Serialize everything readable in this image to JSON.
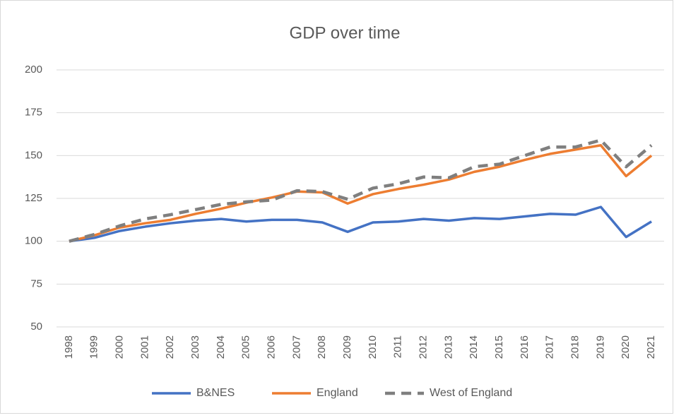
{
  "chart_data": {
    "type": "line",
    "title": "GDP over time",
    "categories": [
      "1998",
      "1999",
      "2000",
      "2001",
      "2002",
      "2003",
      "2004",
      "2005",
      "2006",
      "2007",
      "2008",
      "2009",
      "2010",
      "2011",
      "2012",
      "2013",
      "2014",
      "2015",
      "2016",
      "2017",
      "2018",
      "2019",
      "2020",
      "2021"
    ],
    "series": [
      {
        "name": "B&NES",
        "color": "#4472c4",
        "dash": false,
        "values": [
          100,
          102,
          106,
          108.5,
          110.5,
          112,
          113,
          111.5,
          112.5,
          112.5,
          111,
          105.5,
          111,
          111.5,
          113,
          112,
          113.5,
          113,
          114.5,
          116,
          115.5,
          120,
          102.5,
          111.5
        ]
      },
      {
        "name": "England",
        "color": "#ed7d31",
        "dash": false,
        "values": [
          100,
          103.5,
          108,
          110.5,
          112.5,
          116,
          119,
          122.5,
          125.5,
          129,
          128.5,
          122,
          127.5,
          130.5,
          133,
          136,
          140.5,
          143.5,
          147.5,
          151,
          153.5,
          156,
          138,
          150
        ]
      },
      {
        "name": "West of England",
        "color": "#7f7f7f",
        "dash": true,
        "values": [
          100,
          104,
          109,
          113,
          115.5,
          118.5,
          121.5,
          123,
          124,
          129.5,
          129,
          124.5,
          131,
          133.5,
          137.5,
          137,
          143.5,
          145,
          150,
          155,
          155,
          159,
          143.5,
          156
        ]
      }
    ],
    "ylim": [
      50,
      200
    ],
    "yticks": [
      50,
      75,
      100,
      125,
      150,
      175,
      200
    ],
    "grid": true,
    "legend": "bottom"
  }
}
